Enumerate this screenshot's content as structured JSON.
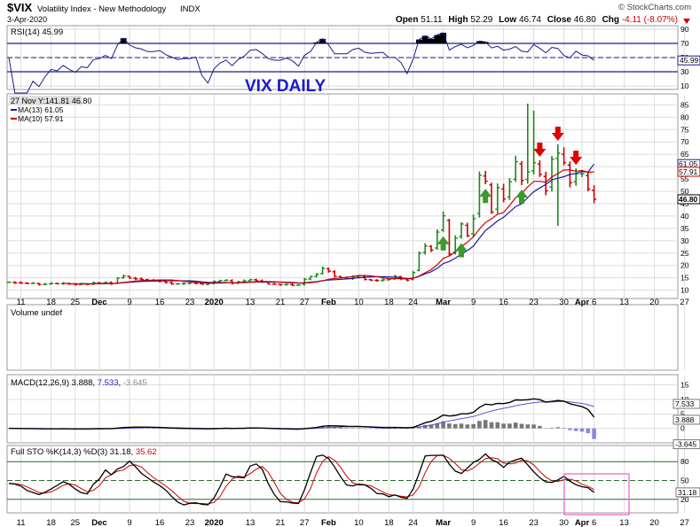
{
  "header": {
    "symbol": "$VIX",
    "name": "Volatility Index - New Methodology",
    "exchange": "INDX",
    "date": "3-Apr-2020",
    "watermark": "© StockCharts.com",
    "ohlc": {
      "open_label": "Open",
      "open": "51.11",
      "high_label": "High",
      "high": "52.29",
      "low_label": "Low",
      "low": "46.74",
      "close_label": "Close",
      "close": "46.80",
      "chg_label": "Chg",
      "chg": "-4.11 (-8.07%)"
    }
  },
  "annotation": {
    "title": "VIX DAILY",
    "color": "#1a1acc"
  },
  "colors": {
    "up": "#1a8a1a",
    "down": "#cc0000",
    "ma_long": "#1a1aa0",
    "ma_short": "#cc0000",
    "panel_line": "#1a1a8a",
    "vol": "#777777",
    "grid": "#dddddd",
    "highlight": "#ee66cc"
  },
  "x_axis": {
    "ticks": [
      {
        "label": "11",
        "i": 2
      },
      {
        "label": "18",
        "i": 7
      },
      {
        "label": "25",
        "i": 11
      },
      {
        "label": "Dec",
        "i": 15,
        "month": true
      },
      {
        "label": "9",
        "i": 20
      },
      {
        "label": "16",
        "i": 25
      },
      {
        "label": "23",
        "i": 30
      },
      {
        "label": "2020",
        "i": 34,
        "month": true
      },
      {
        "label": "13",
        "i": 40
      },
      {
        "label": "21",
        "i": 45
      },
      {
        "label": "27",
        "i": 49
      },
      {
        "label": "Feb",
        "i": 53,
        "month": true
      },
      {
        "label": "10",
        "i": 58
      },
      {
        "label": "18",
        "i": 63
      },
      {
        "label": "24",
        "i": 67
      },
      {
        "label": "Mar",
        "i": 72,
        "month": true
      },
      {
        "label": "9",
        "i": 77
      },
      {
        "label": "16",
        "i": 82
      },
      {
        "label": "23",
        "i": 87
      },
      {
        "label": "30",
        "i": 92
      },
      {
        "label": "Apr",
        "i": 95,
        "month": true
      },
      {
        "label": "6",
        "i": 97
      },
      {
        "label": "13",
        "i": 102
      },
      {
        "label": "20",
        "i": 107
      },
      {
        "label": "27",
        "i": 112
      }
    ]
  },
  "rsi": {
    "label": "RSI(14) 45.99",
    "levels": [
      70,
      30
    ],
    "y_ticks": [
      90,
      70,
      50,
      30,
      10
    ],
    "value_tag": "45.99",
    "ylim": [
      10,
      90
    ]
  },
  "price": {
    "info": "27 Nov Y:141.81 46.80",
    "legend": [
      {
        "text": "MA(13) 61.05",
        "color": "#1a1aa0"
      },
      {
        "text": "MA(10) 57.91",
        "color": "#cc0000"
      }
    ],
    "y_ticks": [
      85,
      80,
      75,
      70,
      65,
      60,
      55,
      50,
      45,
      40,
      35,
      30,
      25,
      20,
      15,
      10
    ],
    "value_tags": [
      {
        "text": "61.05",
        "value": 61.05
      },
      {
        "text": "57.91",
        "value": 57.91
      },
      {
        "text": "46.80",
        "value": 46.8,
        "bold": true
      }
    ],
    "ylim": [
      7,
      88
    ],
    "down_arrows": [
      88,
      91,
      94
    ],
    "up_arrows": [
      72,
      75,
      79,
      85
    ]
  },
  "volume": {
    "label": "Volume undef"
  },
  "macd": {
    "label_prefix": "MACD(12,26,9)",
    "value_main": "3.888",
    "value_signal": "7.533",
    "value_hist": "-3.645",
    "y_ticks": [
      15,
      10,
      5,
      0
    ],
    "value_tags": [
      {
        "text": "7.533",
        "value": 7.533
      },
      {
        "text": "3.888",
        "value": 3.888
      },
      {
        "text": "-3.645",
        "value": -3.645
      }
    ],
    "ylim": [
      -5,
      17
    ]
  },
  "sto": {
    "label_prefix": "Full STO %K(14,3) %D(3)",
    "value_k": "31.18",
    "value_d": "35.62",
    "levels": [
      80,
      20
    ],
    "y_ticks": [
      80,
      50,
      20
    ],
    "value_tag": "31.18",
    "ylim": [
      0,
      100
    ]
  },
  "chart_data": {
    "type": "line",
    "title": "$VIX Volatility Index - New Methodology INDX",
    "x_start": "2019-11-07",
    "x_end": "2020-04-03",
    "close": [
      13.2,
      13.0,
      12.9,
      12.7,
      12.8,
      12.3,
      12.5,
      12.7,
      12.6,
      12.8,
      12.5,
      12.2,
      12.5,
      12.4,
      13.0,
      12.9,
      13.1,
      12.6,
      14.9,
      15.7,
      14.9,
      14.6,
      14.3,
      14.0,
      13.7,
      13.6,
      13.1,
      12.5,
      12.6,
      12.7,
      12.9,
      12.7,
      12.4,
      12.6,
      13.5,
      13.9,
      14.0,
      12.8,
      13.4,
      13.8,
      14.3,
      13.8,
      13.3,
      12.5,
      12.4,
      12.2,
      12.3,
      12.0,
      12.1,
      14.4,
      15.5,
      16.4,
      18.8,
      17.7,
      15.6,
      15.1,
      14.6,
      15.3,
      15.8,
      14.3,
      14.0,
      13.9,
      14.2,
      14.4,
      15.6,
      14.6,
      14.0,
      17.1,
      25.0,
      27.9,
      26.2,
      33.5,
      40.1,
      24.6,
      31.0,
      36.8,
      32.0,
      38.9,
      56.5,
      54.1,
      41.6,
      51.5,
      46.9,
      53.9,
      62.0,
      54.4,
      57.8,
      61.6,
      56.8,
      50.2,
      63.0,
      65.5,
      61.6,
      53.5,
      57.1,
      57.1,
      50.9,
      46.8
    ],
    "ma13_last": 61.05,
    "ma10_last": 57.91,
    "rsi_last": 45.99,
    "macd_last": 3.888,
    "signal_last": 7.533,
    "hist_last": -3.645,
    "stoK_last": 31.18,
    "stoD_last": 35.62
  }
}
